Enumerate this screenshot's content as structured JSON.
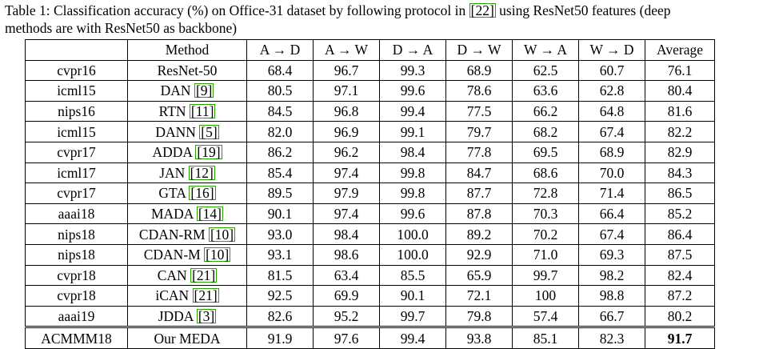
{
  "caption": {
    "line1_pre": "Table 1: Classification accuracy (%) on Office-31 dataset by following protocol in ",
    "line1_cite": "[22]",
    "line1_post": " using ResNet50 features (deep",
    "line2": "methods are with ResNet50 as backbone)"
  },
  "table": {
    "headers": [
      "",
      "Method",
      "A → D",
      "A → W",
      "D → A",
      "D → W",
      "W → A",
      "W → D",
      "Average"
    ],
    "rows": [
      {
        "venue": "cvpr16",
        "method": "ResNet-50",
        "ref": "",
        "values": [
          "68.4",
          "96.7",
          "99.3",
          "68.9",
          "62.5",
          "60.7",
          "76.1"
        ]
      },
      {
        "venue": "icml15",
        "method": "DAN",
        "ref": "[9]",
        "values": [
          "80.5",
          "97.1",
          "99.6",
          "78.6",
          "63.6",
          "62.8",
          "80.4"
        ]
      },
      {
        "venue": "nips16",
        "method": "RTN",
        "ref": "[11]",
        "values": [
          "84.5",
          "96.8",
          "99.4",
          "77.5",
          "66.2",
          "64.8",
          "81.6"
        ]
      },
      {
        "venue": "icml15",
        "method": "DANN",
        "ref": "[5]",
        "values": [
          "82.0",
          "96.9",
          "99.1",
          "79.7",
          "68.2",
          "67.4",
          "82.2"
        ]
      },
      {
        "venue": "cvpr17",
        "method": "ADDA",
        "ref": "[19]",
        "values": [
          "86.2",
          "96.2",
          "98.4",
          "77.8",
          "69.5",
          "68.9",
          "82.9"
        ]
      },
      {
        "venue": "icml17",
        "method": "JAN",
        "ref": "[12]",
        "values": [
          "85.4",
          "97.4",
          "99.8",
          "84.7",
          "68.6",
          "70.0",
          "84.3"
        ]
      },
      {
        "venue": "cvpr17",
        "method": "GTA",
        "ref": "[16]",
        "values": [
          "89.5",
          "97.9",
          "99.8",
          "87.7",
          "72.8",
          "71.4",
          "86.5"
        ]
      },
      {
        "venue": "aaai18",
        "method": "MADA",
        "ref": "[14]",
        "values": [
          "90.1",
          "97.4",
          "99.6",
          "87.8",
          "70.3",
          "66.4",
          "85.2"
        ]
      },
      {
        "venue": "nips18",
        "method": "CDAN-RM",
        "ref": "[10]",
        "values": [
          "93.0",
          "98.4",
          "100.0",
          "89.2",
          "70.2",
          "67.4",
          "86.4"
        ]
      },
      {
        "venue": "nips18",
        "method": "CDAN-M",
        "ref": "[10]",
        "values": [
          "93.1",
          "98.6",
          "100.0",
          "92.9",
          "71.0",
          "69.3",
          "87.5"
        ]
      },
      {
        "venue": "cvpr18",
        "method": "CAN",
        "ref": "[21]",
        "values": [
          "81.5",
          "63.4",
          "85.5",
          "65.9",
          "99.7",
          "98.2",
          "82.4"
        ]
      },
      {
        "venue": "cvpr18",
        "method": "iCAN",
        "ref": "[21]",
        "values": [
          "92.5",
          "69.9",
          "90.1",
          "72.1",
          "100",
          "98.8",
          "87.2"
        ]
      },
      {
        "venue": "aaai19",
        "method": "JDDA",
        "ref": "[3]",
        "values": [
          "82.6",
          "95.2",
          "99.7",
          "79.8",
          "57.4",
          "66.7",
          "80.2"
        ]
      }
    ],
    "ours": {
      "venue": "ACMMM18",
      "method": "Our MEDA",
      "values": [
        "91.9",
        "97.6",
        "99.4",
        "93.8",
        "85.1",
        "82.3",
        "91.7"
      ]
    }
  },
  "colors": {
    "citation_box": "#27a300"
  }
}
